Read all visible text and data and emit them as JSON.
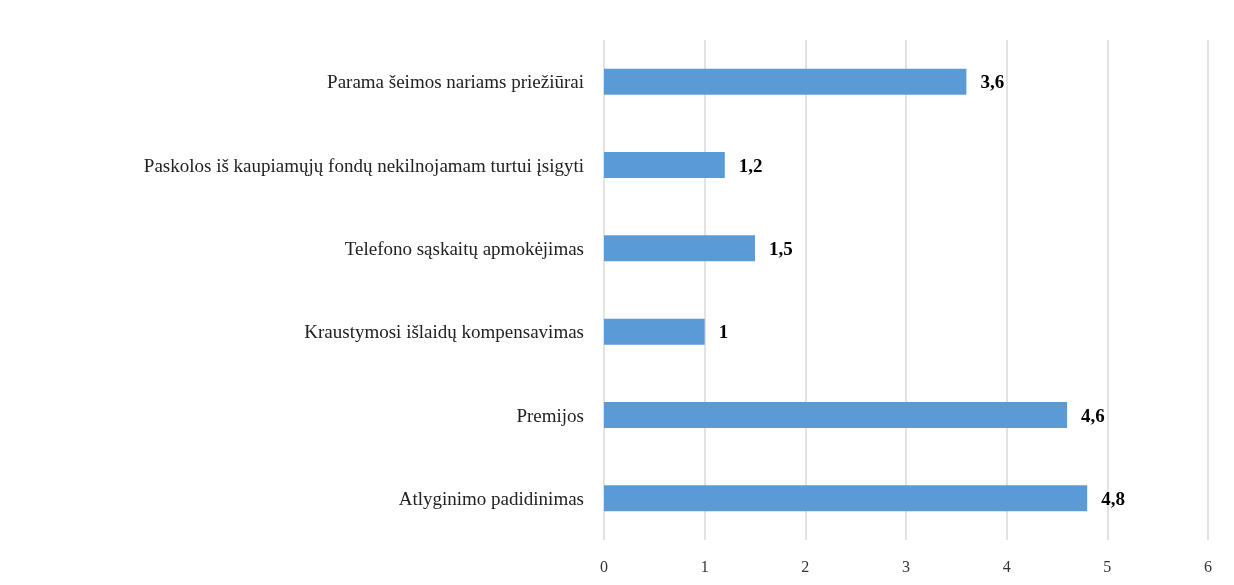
{
  "chart_data": {
    "type": "bar",
    "orientation": "horizontal",
    "categories": [
      "Parama šeimos nariams priežiūrai",
      "Paskolos iš kaupiamųjų fondų nekilnojamam turtui įsigyti",
      "Telefono sąskaitų apmokėjimas",
      "Kraustymosi išlaidų kompensavimas",
      "Premijos",
      "Atlyginimo padidinimas"
    ],
    "values": [
      3.6,
      1.2,
      1.5,
      1,
      4.6,
      4.8
    ],
    "value_labels": [
      "3,6",
      "1,2",
      "1,5",
      "1",
      "4,6",
      "4,8"
    ],
    "color": "#5b9bd5",
    "xlim": [
      0,
      6
    ],
    "xticks": [
      0,
      1,
      2,
      3,
      4,
      5,
      6
    ],
    "grid": "x"
  }
}
